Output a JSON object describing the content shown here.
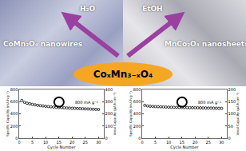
{
  "diagram": {
    "left_arrow_label": "H₂O",
    "right_arrow_label": "EtOH",
    "left_label": "CoMn₂O₄ nanowires",
    "right_label": "MnCo₂O₄ nanosheets",
    "center_label": "CoₓMn₃₋ₓO₄"
  },
  "chart_data": [
    {
      "type": "scatter",
      "xlabel": "Cycle Number",
      "ylabel": "Specific Capacity (mA h g⁻¹)",
      "y2label": "Areal Capacity (μA h cm⁻²)",
      "x": [
        1,
        2,
        3,
        4,
        5,
        6,
        7,
        8,
        9,
        10,
        11,
        12,
        13,
        14,
        15,
        16,
        17,
        18,
        19,
        20,
        21,
        22,
        23,
        24,
        25,
        26,
        27,
        28,
        29,
        30
      ],
      "xlim": [
        0,
        32
      ],
      "xticks": [
        0,
        5,
        10,
        15,
        20,
        25,
        30
      ],
      "ylim": [
        0,
        800
      ],
      "yticks": [
        0,
        200,
        400,
        600,
        800
      ],
      "y2lim": [
        0,
        400
      ],
      "y2ticks": [
        0,
        100,
        200,
        300,
        400
      ],
      "legend": "top right",
      "series": [
        {
          "name": "800 mA g⁻¹",
          "color": "#000000",
          "marker": "circle-open",
          "values": [
            620,
            590,
            575,
            565,
            555,
            548,
            540,
            535,
            530,
            525,
            520,
            515,
            512,
            508,
            505,
            502,
            500,
            497,
            495,
            492,
            490,
            488,
            486,
            484,
            482,
            480,
            478,
            476,
            474,
            472
          ]
        }
      ]
    },
    {
      "type": "scatter",
      "xlabel": "Cycle Number",
      "ylabel": "Specific Capacity (mA h g⁻¹)",
      "y2label": "Areal Capacity (μA h cm⁻²)",
      "x": [
        1,
        2,
        3,
        4,
        5,
        6,
        7,
        8,
        9,
        10,
        11,
        12,
        13,
        14,
        15,
        16,
        17,
        18,
        19,
        20,
        21,
        22,
        23,
        24,
        25,
        26,
        27,
        28,
        29,
        30
      ],
      "xlim": [
        0,
        32
      ],
      "xticks": [
        0,
        5,
        10,
        15,
        20,
        25,
        30
      ],
      "ylim": [
        0,
        800
      ],
      "yticks": [
        0,
        200,
        400,
        600,
        800
      ],
      "y2lim": [
        0,
        200
      ],
      "y2ticks": [
        0,
        50,
        100,
        150,
        200
      ],
      "legend": "top right",
      "series": [
        {
          "name": "800 mA g⁻¹",
          "color": "#000000",
          "marker": "circle-open",
          "values": [
            540,
            530,
            525,
            522,
            520,
            518,
            516,
            514,
            512,
            510,
            509,
            508,
            507,
            506,
            505,
            504,
            503,
            502,
            501,
            500,
            499,
            498,
            497,
            496,
            495,
            494,
            493,
            492,
            491,
            490
          ]
        }
      ]
    }
  ]
}
